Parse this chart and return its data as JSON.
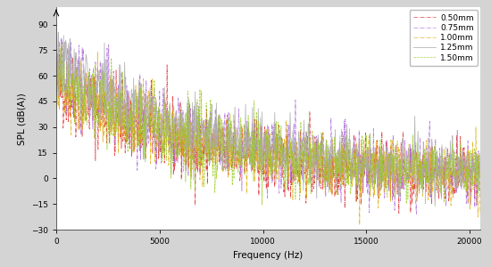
{
  "title": "",
  "xlabel": "Frequency (Hz)",
  "ylabel": "SPL (dB(A))",
  "xlim": [
    0,
    20500
  ],
  "ylim": [
    -30,
    100
  ],
  "yticks": [
    -30,
    -15,
    0,
    15,
    30,
    45,
    60,
    75,
    90
  ],
  "xticks": [
    0,
    5000,
    10000,
    15000,
    20000
  ],
  "background_color": "#d4d4d4",
  "plot_background": "#ffffff",
  "lines": [
    {
      "label": "0.50mm",
      "color": "#dd2222",
      "linestyle": "-.",
      "linewidth": 0.5,
      "alpha": 0.85
    },
    {
      "label": "0.75mm",
      "color": "#aa66dd",
      "linestyle": "-.",
      "linewidth": 0.5,
      "alpha": 0.85
    },
    {
      "label": "1.00mm",
      "color": "#ddaa00",
      "linestyle": "-.",
      "linewidth": 0.5,
      "alpha": 0.85
    },
    {
      "label": "1.25mm",
      "color": "#aaaaaa",
      "linestyle": "-",
      "linewidth": 0.6,
      "alpha": 0.85
    },
    {
      "label": "1.50mm",
      "color": "#99cc22",
      "linestyle": "--",
      "linewidth": 0.5,
      "alpha": 0.85
    }
  ],
  "n_points": 800,
  "freq_max": 20500,
  "noise_seed": 42,
  "legend_fontsize": 6.5,
  "axis_fontsize": 7.5,
  "tick_fontsize": 6.5,
  "line_params": [
    [
      55,
      3.2,
      12,
      0
    ],
    [
      65,
      3.0,
      13,
      10
    ],
    [
      60,
      3.1,
      12,
      20
    ],
    [
      68,
      2.7,
      11,
      30
    ],
    [
      58,
      2.9,
      12,
      40
    ]
  ]
}
